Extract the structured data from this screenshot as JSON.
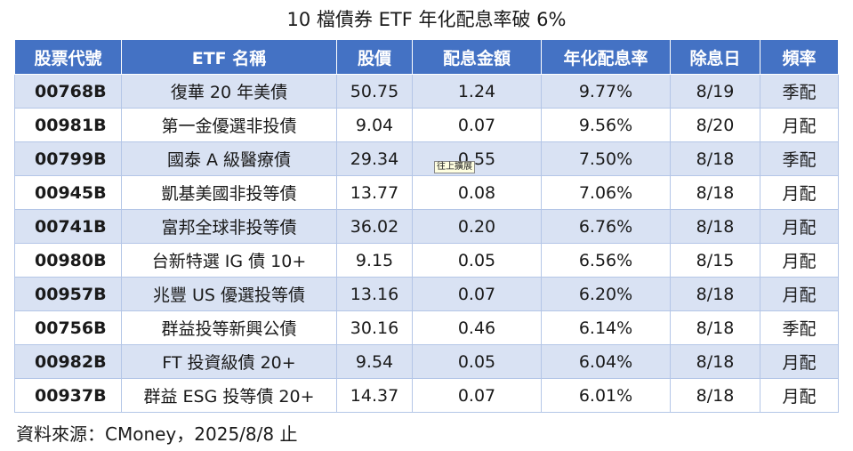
{
  "title": "10 檔債券 ETF 年化配息率破 6%",
  "columns": [
    "股票代號",
    "ETF 名稱",
    "股價",
    "配息金額",
    "年化配息率",
    "除息日",
    "頻率"
  ],
  "rows": [
    [
      "00768B",
      "復華 20 年美債",
      "50.75",
      "1.24",
      "9.77%",
      "8/19",
      "季配"
    ],
    [
      "00981B",
      "第一金優選非投債",
      "9.04",
      "0.07",
      "9.56%",
      "8/20",
      "月配"
    ],
    [
      "00799B",
      "國泰 A 級醫療債",
      "29.34",
      "0.55",
      "7.50%",
      "8/18",
      "季配"
    ],
    [
      "00945B",
      "凱基美國非投等債",
      "13.77",
      "0.08",
      "7.06%",
      "8/18",
      "月配"
    ],
    [
      "00741B",
      "富邦全球非投等債",
      "36.02",
      "0.20",
      "6.76%",
      "8/18",
      "月配"
    ],
    [
      "00980B",
      "台新特選 IG 債 10+",
      "9.15",
      "0.05",
      "6.56%",
      "8/15",
      "月配"
    ],
    [
      "00957B",
      "兆豐 US 優選投等債",
      "13.16",
      "0.07",
      "6.20%",
      "8/18",
      "月配"
    ],
    [
      "00756B",
      "群益投等新興公債",
      "30.16",
      "0.46",
      "6.14%",
      "8/18",
      "季配"
    ],
    [
      "00982B",
      "FT 投資級債 20+",
      "9.54",
      "0.05",
      "6.04%",
      "8/18",
      "月配"
    ],
    [
      "00937B",
      "群益 ESG 投等債 20+",
      "14.37",
      "0.07",
      "6.01%",
      "8/18",
      "月配"
    ]
  ],
  "tooltip": "往上擴展",
  "source": "資料來源：CMoney，2025/8/8 止",
  "colors": {
    "header_bg": "#4472c4",
    "band_bg": "#d9e2f3",
    "border": "#b4c6e7"
  }
}
